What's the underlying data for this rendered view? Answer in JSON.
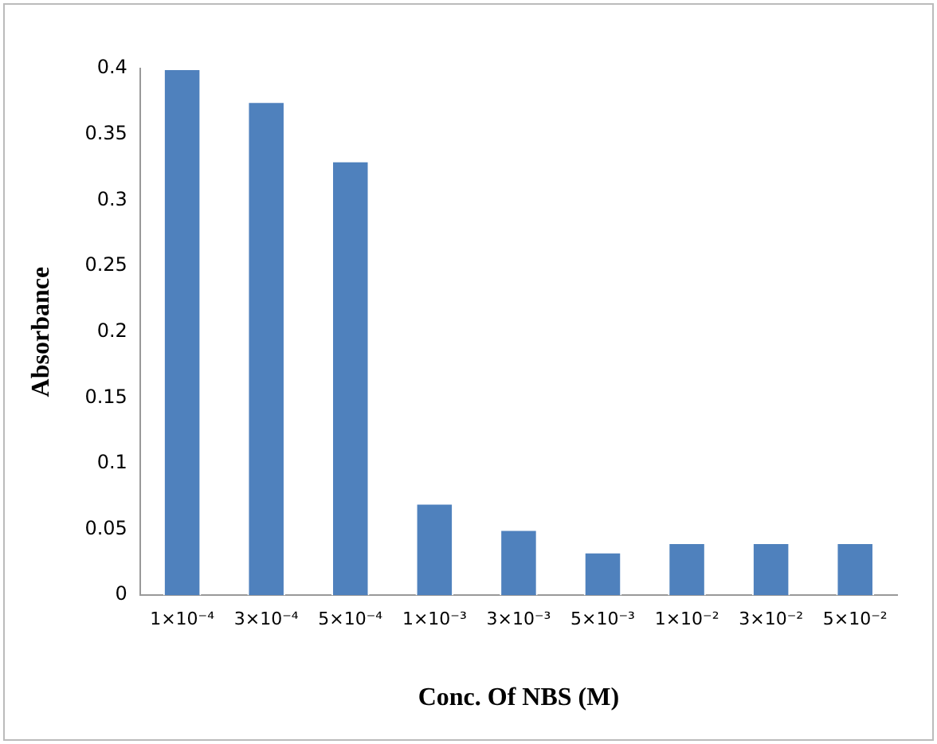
{
  "chart_data": {
    "type": "bar",
    "xlabel": "Conc. Of NBS (M)",
    "ylabel": "Absorbance",
    "categories": [
      "1×10⁻⁴",
      "3×10⁻⁴",
      "5×10⁻⁴",
      "1×10⁻³",
      "3×10⁻³",
      "5×10⁻³",
      "1×10⁻²",
      "3×10⁻²",
      "5×10⁻²"
    ],
    "values": [
      0.4,
      0.375,
      0.33,
      0.07,
      0.05,
      0.033,
      0.04,
      0.04,
      0.04
    ],
    "color": "#4f81bd",
    "ylim": [
      0,
      0.4
    ],
    "yticks": [
      0,
      0.05,
      0.1,
      0.15,
      0.2,
      0.25,
      0.3,
      0.35,
      0.4
    ],
    "grid": false,
    "legend": false
  }
}
